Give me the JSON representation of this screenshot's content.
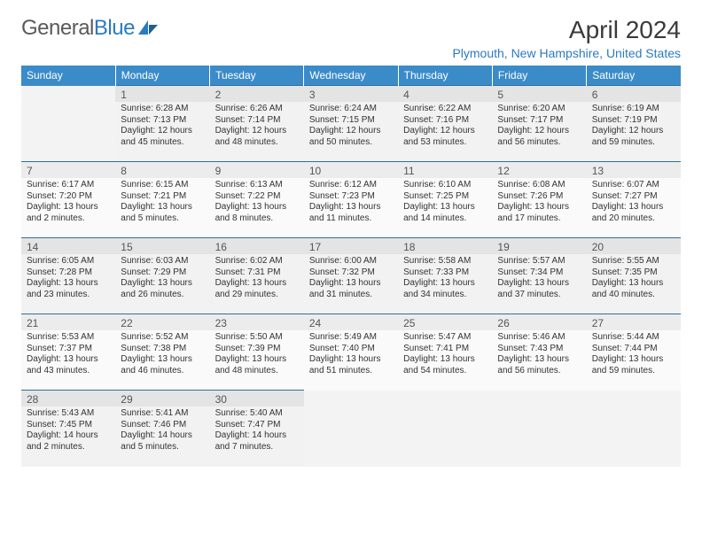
{
  "brand": {
    "part1": "General",
    "part2": "Blue"
  },
  "title": "April 2024",
  "location": "Plymouth, New Hampshire, United States",
  "colors": {
    "header_bg": "#3b8bc9",
    "header_text": "#ffffff",
    "accent": "#2b7bbf",
    "row_border": "#2b6fa3",
    "row_alt_bg": "#f3f3f3",
    "text": "#333333",
    "title_text": "#3a3a3a"
  },
  "weekdays": [
    "Sunday",
    "Monday",
    "Tuesday",
    "Wednesday",
    "Thursday",
    "Friday",
    "Saturday"
  ],
  "weeks": [
    [
      null,
      {
        "n": "1",
        "sr": "6:28 AM",
        "ss": "7:13 PM",
        "dl": "12 hours and 45 minutes."
      },
      {
        "n": "2",
        "sr": "6:26 AM",
        "ss": "7:14 PM",
        "dl": "12 hours and 48 minutes."
      },
      {
        "n": "3",
        "sr": "6:24 AM",
        "ss": "7:15 PM",
        "dl": "12 hours and 50 minutes."
      },
      {
        "n": "4",
        "sr": "6:22 AM",
        "ss": "7:16 PM",
        "dl": "12 hours and 53 minutes."
      },
      {
        "n": "5",
        "sr": "6:20 AM",
        "ss": "7:17 PM",
        "dl": "12 hours and 56 minutes."
      },
      {
        "n": "6",
        "sr": "6:19 AM",
        "ss": "7:19 PM",
        "dl": "12 hours and 59 minutes."
      }
    ],
    [
      {
        "n": "7",
        "sr": "6:17 AM",
        "ss": "7:20 PM",
        "dl": "13 hours and 2 minutes."
      },
      {
        "n": "8",
        "sr": "6:15 AM",
        "ss": "7:21 PM",
        "dl": "13 hours and 5 minutes."
      },
      {
        "n": "9",
        "sr": "6:13 AM",
        "ss": "7:22 PM",
        "dl": "13 hours and 8 minutes."
      },
      {
        "n": "10",
        "sr": "6:12 AM",
        "ss": "7:23 PM",
        "dl": "13 hours and 11 minutes."
      },
      {
        "n": "11",
        "sr": "6:10 AM",
        "ss": "7:25 PM",
        "dl": "13 hours and 14 minutes."
      },
      {
        "n": "12",
        "sr": "6:08 AM",
        "ss": "7:26 PM",
        "dl": "13 hours and 17 minutes."
      },
      {
        "n": "13",
        "sr": "6:07 AM",
        "ss": "7:27 PM",
        "dl": "13 hours and 20 minutes."
      }
    ],
    [
      {
        "n": "14",
        "sr": "6:05 AM",
        "ss": "7:28 PM",
        "dl": "13 hours and 23 minutes."
      },
      {
        "n": "15",
        "sr": "6:03 AM",
        "ss": "7:29 PM",
        "dl": "13 hours and 26 minutes."
      },
      {
        "n": "16",
        "sr": "6:02 AM",
        "ss": "7:31 PM",
        "dl": "13 hours and 29 minutes."
      },
      {
        "n": "17",
        "sr": "6:00 AM",
        "ss": "7:32 PM",
        "dl": "13 hours and 31 minutes."
      },
      {
        "n": "18",
        "sr": "5:58 AM",
        "ss": "7:33 PM",
        "dl": "13 hours and 34 minutes."
      },
      {
        "n": "19",
        "sr": "5:57 AM",
        "ss": "7:34 PM",
        "dl": "13 hours and 37 minutes."
      },
      {
        "n": "20",
        "sr": "5:55 AM",
        "ss": "7:35 PM",
        "dl": "13 hours and 40 minutes."
      }
    ],
    [
      {
        "n": "21",
        "sr": "5:53 AM",
        "ss": "7:37 PM",
        "dl": "13 hours and 43 minutes."
      },
      {
        "n": "22",
        "sr": "5:52 AM",
        "ss": "7:38 PM",
        "dl": "13 hours and 46 minutes."
      },
      {
        "n": "23",
        "sr": "5:50 AM",
        "ss": "7:39 PM",
        "dl": "13 hours and 48 minutes."
      },
      {
        "n": "24",
        "sr": "5:49 AM",
        "ss": "7:40 PM",
        "dl": "13 hours and 51 minutes."
      },
      {
        "n": "25",
        "sr": "5:47 AM",
        "ss": "7:41 PM",
        "dl": "13 hours and 54 minutes."
      },
      {
        "n": "26",
        "sr": "5:46 AM",
        "ss": "7:43 PM",
        "dl": "13 hours and 56 minutes."
      },
      {
        "n": "27",
        "sr": "5:44 AM",
        "ss": "7:44 PM",
        "dl": "13 hours and 59 minutes."
      }
    ],
    [
      {
        "n": "28",
        "sr": "5:43 AM",
        "ss": "7:45 PM",
        "dl": "14 hours and 2 minutes."
      },
      {
        "n": "29",
        "sr": "5:41 AM",
        "ss": "7:46 PM",
        "dl": "14 hours and 5 minutes."
      },
      {
        "n": "30",
        "sr": "5:40 AM",
        "ss": "7:47 PM",
        "dl": "14 hours and 7 minutes."
      },
      null,
      null,
      null,
      null
    ]
  ],
  "labels": {
    "sunrise": "Sunrise:",
    "sunset": "Sunset:",
    "daylight": "Daylight:"
  }
}
